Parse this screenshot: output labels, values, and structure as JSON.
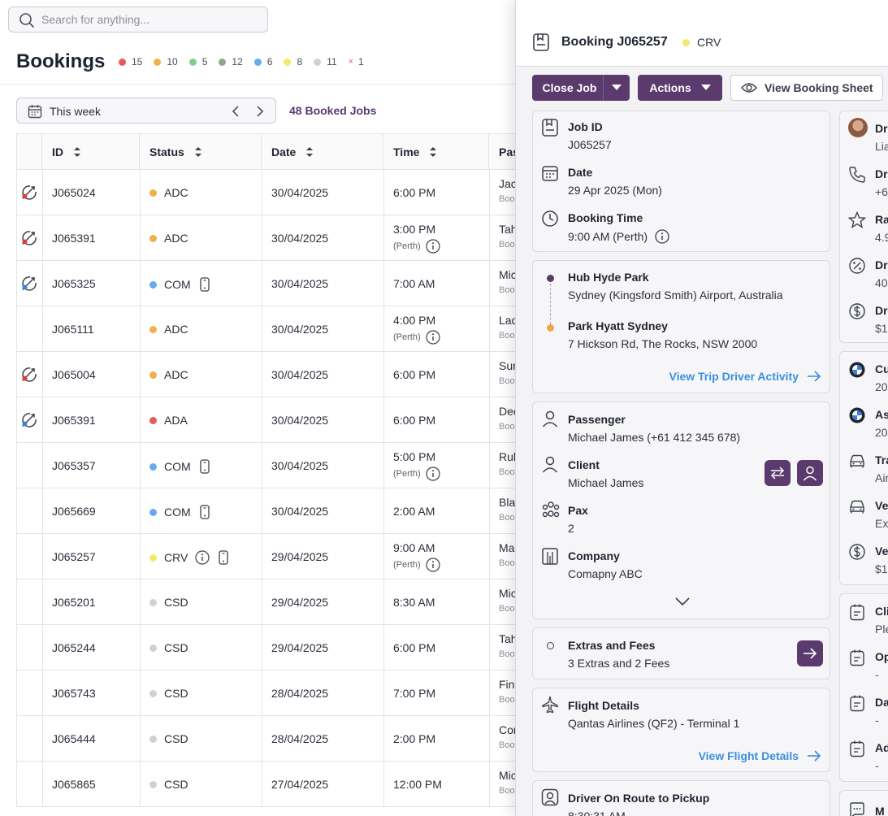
{
  "search": {
    "placeholder": "Search for anything..."
  },
  "page": {
    "title": "Bookings"
  },
  "status_counts": [
    {
      "count": "15",
      "color": "#e85a5a"
    },
    {
      "count": "10",
      "color": "#f2b04a"
    },
    {
      "count": "5",
      "color": "#7fcf8b"
    },
    {
      "count": "12",
      "color": "#8da88d"
    },
    {
      "count": "6",
      "color": "#6aa9f0"
    },
    {
      "count": "8",
      "color": "#f5e96a"
    },
    {
      "count": "11",
      "color": "#cfd1d5"
    },
    {
      "count": "1",
      "color": "#e85a5a",
      "symbol": "×"
    }
  ],
  "filter": {
    "range": "This week",
    "booked": "48 Booked Jobs"
  },
  "table": {
    "columns": [
      "ID",
      "Status",
      "Date",
      "Time",
      "Pas"
    ],
    "rows": [
      {
        "id": "J065024",
        "status": "ADC",
        "color": "#f2b04a",
        "date": "30/04/2025",
        "time": "6:00 PM",
        "tz": "",
        "pas": "Jac",
        "sub": "Boo",
        "flag": "red",
        "info": false,
        "phone": false
      },
      {
        "id": "J065391",
        "status": "ADC",
        "color": "#f2b04a",
        "date": "30/04/2025",
        "time": "3:00 PM",
        "tz": "(Perth)",
        "pas": "Tah",
        "sub": "Boo",
        "flag": "red",
        "info": false,
        "phone": false
      },
      {
        "id": "J065325",
        "status": "COM",
        "color": "#6aa9f0",
        "date": "30/04/2025",
        "time": "7:00 AM",
        "tz": "",
        "pas": "Mic",
        "sub": "Boo",
        "flag": "blue",
        "info": false,
        "phone": true
      },
      {
        "id": "J065111",
        "status": "ADC",
        "color": "#f2b04a",
        "date": "30/04/2025",
        "time": "4:00 PM",
        "tz": "(Perth)",
        "pas": "Lad",
        "sub": "Boo",
        "flag": "",
        "info": false,
        "phone": false
      },
      {
        "id": "J065004",
        "status": "ADC",
        "color": "#f2b04a",
        "date": "30/04/2025",
        "time": "6:00 PM",
        "tz": "",
        "pas": "Sur",
        "sub": "Boo",
        "flag": "red",
        "info": false,
        "phone": false
      },
      {
        "id": "J065391",
        "status": "ADA",
        "color": "#e85a5a",
        "date": "30/04/2025",
        "time": "6:00 PM",
        "tz": "",
        "pas": "Dec",
        "sub": "Boo",
        "flag": "blue",
        "info": false,
        "phone": false
      },
      {
        "id": "J065357",
        "status": "COM",
        "color": "#6aa9f0",
        "date": "30/04/2025",
        "time": "5:00 PM",
        "tz": "(Perth)",
        "pas": "Rub",
        "sub": "Boo",
        "flag": "",
        "info": false,
        "phone": true
      },
      {
        "id": "J065669",
        "status": "COM",
        "color": "#6aa9f0",
        "date": "30/04/2025",
        "time": "2:00 AM",
        "tz": "",
        "pas": "Bla",
        "sub": "Boo",
        "flag": "",
        "info": false,
        "phone": true
      },
      {
        "id": "J065257",
        "status": "CRV",
        "color": "#f5e96a",
        "date": "29/04/2025",
        "time": "9:00 AM",
        "tz": "(Perth)",
        "pas": "Ma",
        "sub": "Boo",
        "flag": "",
        "info": true,
        "phone": true
      },
      {
        "id": "J065201",
        "status": "CSD",
        "color": "#cfd1d5",
        "date": "29/04/2025",
        "time": "8:30 AM",
        "tz": "",
        "pas": "Mic",
        "sub": "Boo",
        "flag": "",
        "info": false,
        "phone": false
      },
      {
        "id": "J065244",
        "status": "CSD",
        "color": "#cfd1d5",
        "date": "29/04/2025",
        "time": "6:00 PM",
        "tz": "",
        "pas": "Tah",
        "sub": "Boo",
        "flag": "",
        "info": false,
        "phone": false
      },
      {
        "id": "J065743",
        "status": "CSD",
        "color": "#cfd1d5",
        "date": "28/04/2025",
        "time": "7:00 PM",
        "tz": "",
        "pas": "Fin",
        "sub": "Boo",
        "flag": "",
        "info": false,
        "phone": false
      },
      {
        "id": "J065444",
        "status": "CSD",
        "color": "#cfd1d5",
        "date": "28/04/2025",
        "time": "2:00 PM",
        "tz": "",
        "pas": "Cor",
        "sub": "Boo",
        "flag": "",
        "info": false,
        "phone": false
      },
      {
        "id": "J065865",
        "status": "CSD",
        "color": "#cfd1d5",
        "date": "27/04/2025",
        "time": "12:00 PM",
        "tz": "",
        "pas": "Mic",
        "sub": "Boo",
        "flag": "",
        "info": false,
        "phone": false
      }
    ]
  },
  "panel": {
    "title": "Booking J065257",
    "status": "CRV",
    "status_color": "#f5e96a",
    "close_job": "Close Job",
    "actions": "Actions",
    "view_sheet": "View Booking Sheet",
    "job": {
      "id_label": "Job ID",
      "id": "J065257",
      "date_label": "Date",
      "date": "29 Apr 2025 (Mon)",
      "time_label": "Booking Time",
      "time": "9:00 AM (Perth)"
    },
    "trip": {
      "from_name": "Hub Hyde Park",
      "from_addr": "Sydney (Kingsford Smith) Airport, Australia",
      "to_name": "Park Hyatt Sydney",
      "to_addr": "7 Hickson Rd, The Rocks, NSW 2000",
      "link": "View Trip Driver Activity"
    },
    "pax_card": {
      "passenger_label": "Passenger",
      "passenger": "Michael James (+61 412 345 678)",
      "client_label": "Client",
      "client": "Michael James",
      "pax_label": "Pax",
      "pax": "2",
      "company_label": "Company",
      "company": "Comapny ABC"
    },
    "extras": {
      "label": "Extras and Fees",
      "value": "3 Extras and 2 Fees"
    },
    "flight": {
      "label": "Flight Details",
      "value": "Qantas Airlines (QF2) - Terminal 1",
      "link": "View Flight Details"
    },
    "driver_route": {
      "label": "Driver On Route to Pickup",
      "value": "8:30:31 AM"
    }
  },
  "right_col": {
    "driver": [
      {
        "label": "Dri",
        "value": "Lia",
        "icon": "avatar"
      },
      {
        "label": "Dri",
        "value": "+6",
        "icon": "phone-icon"
      },
      {
        "label": "Ra",
        "value": "4.9",
        "icon": "star-icon"
      },
      {
        "label": "Dri",
        "value": "40",
        "icon": "percent-icon"
      },
      {
        "label": "Dri",
        "value": "$1",
        "icon": "dollar-icon"
      }
    ],
    "vehicle": [
      {
        "label": "Cu",
        "value": "20",
        "icon": "bmw-logo-icon"
      },
      {
        "label": "As",
        "value": "20",
        "icon": "bmw-logo-icon"
      },
      {
        "label": "Tra",
        "value": "Air",
        "icon": "car-icon"
      },
      {
        "label": "Ve",
        "value": "Exe",
        "icon": "car-icon"
      },
      {
        "label": "Ve",
        "value": "$1",
        "icon": "dollar-icon"
      }
    ],
    "notes": [
      {
        "label": "Cli",
        "value": "Ple"
      },
      {
        "label": "Op",
        "value": "-"
      },
      {
        "label": "Da",
        "value": "-"
      },
      {
        "label": "Ad",
        "value": "-"
      }
    ],
    "last": {
      "label": "M"
    }
  }
}
